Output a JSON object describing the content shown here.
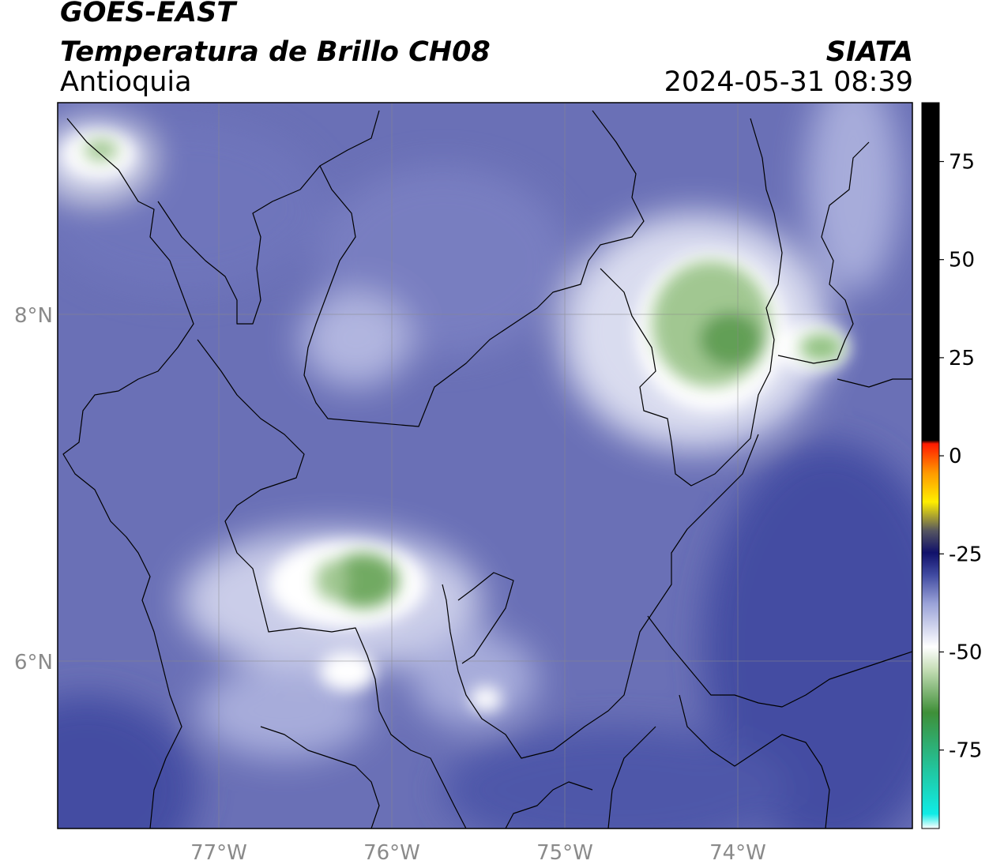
{
  "header": {
    "satellite": "GOES-EAST",
    "product": "Temperatura de Brillo CH08",
    "region": "Antioquia",
    "agency": "SIATA",
    "datetime": "2024-05-31 08:39"
  },
  "map": {
    "lon_labels": [
      "77°W",
      "76°W",
      "75°W",
      "74°W"
    ],
    "lat_labels": [
      "8°N",
      "6°N"
    ],
    "lon_range": [
      -77.95,
      -73.0
    ],
    "lat_range": [
      5.05,
      9.25
    ],
    "gridlines": true
  },
  "colorbar": {
    "tick_labels": [
      "75",
      "50",
      "25",
      "0",
      "-25",
      "-50",
      "-75"
    ],
    "tick_values": [
      75,
      50,
      25,
      0,
      -25,
      -50,
      -75
    ],
    "range": [
      -95,
      90
    ],
    "colors": {
      "black": "#000000",
      "red": "#ff1a00",
      "orange": "#ff9900",
      "yellow": "#ffee00",
      "navy": "#10106a",
      "indigo": "#3f49a0",
      "lavender": "#9aa2d8",
      "white": "#ffffff",
      "pale_green": "#c7dfb8",
      "green": "#3f8f38",
      "teal": "#21c6a0",
      "cyan": "#10ece6"
    }
  }
}
